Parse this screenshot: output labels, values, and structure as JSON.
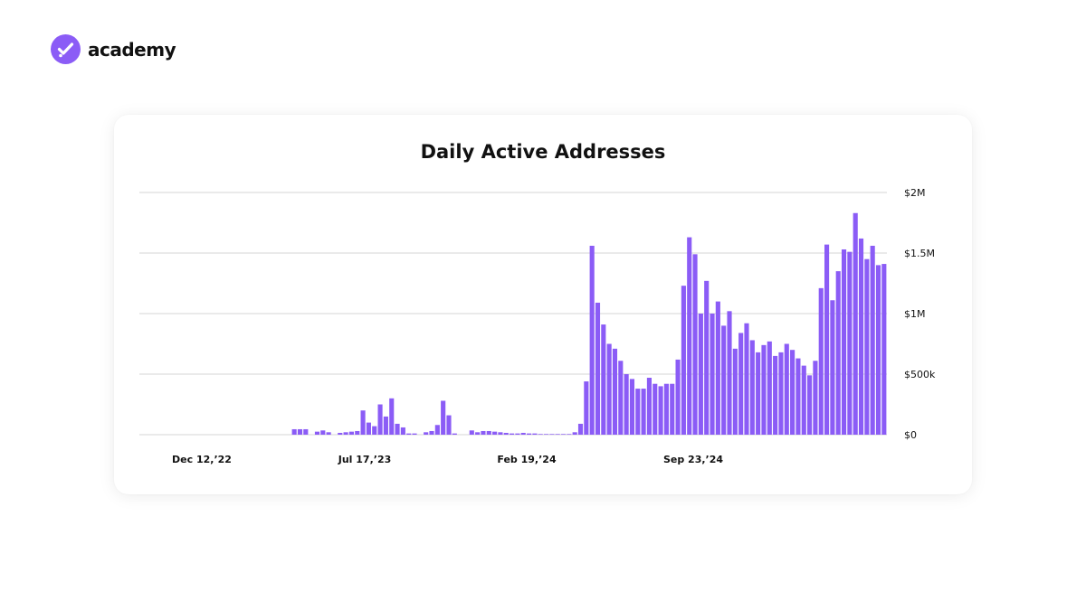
{
  "brand": {
    "name": "academy",
    "logo_icon": "check-badge-icon",
    "accent_color": "#8b5cf6"
  },
  "chart_data": {
    "type": "bar",
    "title": "Daily Active Addresses",
    "xlabel": "",
    "ylabel": "",
    "ylim": [
      0,
      2000000
    ],
    "grid": true,
    "bar_color": "#8b5cf6",
    "y_ticks": [
      {
        "value": 0,
        "label": "$0"
      },
      {
        "value": 500000,
        "label": "$500k"
      },
      {
        "value": 1000000,
        "label": "$1M"
      },
      {
        "value": 1500000,
        "label": "$1.5M"
      },
      {
        "value": 2000000,
        "label": "$2M"
      }
    ],
    "x_ticks": [
      {
        "index": 10,
        "label": "Dec 12,’22"
      },
      {
        "index": 40,
        "label": "Jul 17,’23"
      },
      {
        "index": 70,
        "label": "Feb 19,’24"
      },
      {
        "index": 100,
        "label": "Sep 23,’24"
      }
    ],
    "values": [
      0,
      0,
      0,
      0,
      0,
      0,
      0,
      0,
      0,
      0,
      0,
      0,
      0,
      0,
      0,
      0,
      0,
      0,
      0,
      0,
      0,
      0,
      0,
      0,
      0,
      0,
      0,
      0,
      45000,
      45000,
      45000,
      0,
      25000,
      35000,
      20000,
      0,
      15000,
      20000,
      25000,
      30000,
      200000,
      100000,
      70000,
      250000,
      150000,
      300000,
      90000,
      60000,
      10000,
      10000,
      0,
      20000,
      30000,
      80000,
      280000,
      160000,
      10000,
      0,
      0,
      35000,
      20000,
      30000,
      30000,
      25000,
      20000,
      15000,
      10000,
      10000,
      15000,
      10000,
      10000,
      5000,
      5000,
      5000,
      5000,
      5000,
      5000,
      20000,
      90000,
      440000,
      1560000,
      1090000,
      910000,
      750000,
      710000,
      610000,
      500000,
      460000,
      380000,
      380000,
      470000,
      420000,
      400000,
      420000,
      420000,
      620000,
      1230000,
      1630000,
      1490000,
      1000000,
      1270000,
      1000000,
      1100000,
      900000,
      1020000,
      710000,
      840000,
      920000,
      780000,
      680000,
      740000,
      770000,
      650000,
      680000,
      750000,
      700000,
      630000,
      570000,
      490000,
      610000,
      1210000,
      1570000,
      1110000,
      1350000,
      1530000,
      1510000,
      1830000,
      1620000,
      1450000,
      1560000,
      1400000,
      1410000
    ]
  }
}
